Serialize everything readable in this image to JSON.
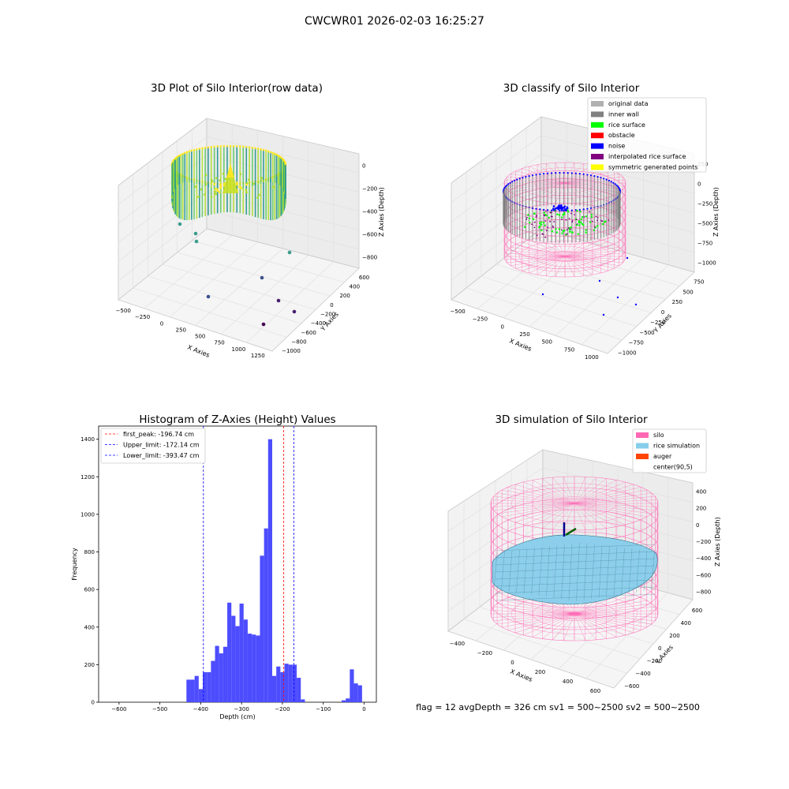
{
  "suptitle": "CWCWR01 2026-02-03 16:25:27",
  "status_line": "flag = 12   avgDepth = 326 cm   sv1 = 500~2500   sv2 = 500~2500",
  "colors": {
    "hist_bar": "#4d4dff",
    "first_peak": "#ff0000",
    "limit": "#0000ff",
    "silo": "#ff69b4",
    "rice_simulation": "#87ceeb",
    "auger": "#ff4500",
    "inner_wall": "#808080",
    "rice_surface": "#00ff00",
    "noise": "#0000ff",
    "original_data": "#b0b0b0",
    "obstacle": "#ff0000",
    "interpolated_rice_surface": "#800080",
    "symmetric_generated_points": "#ffff00"
  },
  "chart_data": [
    {
      "type": "scatter",
      "title": "3D Plot of Silo Interior(row data)",
      "projection": "3d",
      "xlabel": "X Axies",
      "ylabel": "Y Axies",
      "zlabel": "Z Axies (Depth)",
      "x_ticks": [
        "−500",
        "−250",
        "0",
        "250",
        "500",
        "750",
        "1000",
        "1250"
      ],
      "y_ticks": [
        "600",
        "400",
        "200",
        "0",
        "−200",
        "−400",
        "−600",
        "−800",
        "−1000"
      ],
      "z_ticks": [
        "0",
        "−200",
        "−400",
        "−600",
        "−800"
      ],
      "colormap": "viridis"
    },
    {
      "type": "scatter",
      "title": "3D classify of Silo Interior",
      "projection": "3d",
      "xlabel": "X Axies",
      "ylabel": "Y Axies",
      "zlabel": "Z Axies (Depth)",
      "x_ticks": [
        "−500",
        "−250",
        "0",
        "250",
        "500",
        "750",
        "1000"
      ],
      "y_ticks": [
        "750",
        "500",
        "250",
        "0",
        "−250",
        "−500",
        "−750",
        "−1000"
      ],
      "z_ticks": [
        "250",
        "0",
        "−250",
        "−500",
        "−750",
        "−1000"
      ],
      "legend": [
        {
          "label": "original data",
          "color": "#b0b0b0"
        },
        {
          "label": "inner wall",
          "color": "#808080"
        },
        {
          "label": "rice surface",
          "color": "#00ff00"
        },
        {
          "label": "obstacle",
          "color": "#ff0000"
        },
        {
          "label": "noise",
          "color": "#0000ff"
        },
        {
          "label": "interpolated rice surface",
          "color": "#800080"
        },
        {
          "label": "symmetric generated points",
          "color": "#ffff00"
        }
      ],
      "legend_loc": "upper right"
    },
    {
      "type": "bar",
      "title": "Histogram of Z-Axies (Height) Values",
      "xlabel": "Depth (cm)",
      "ylabel": "Frequency",
      "xlim": [
        -650,
        30
      ],
      "ylim": [
        0,
        1470
      ],
      "x_ticks": [
        "−600",
        "−500",
        "−400",
        "−300",
        "−200",
        "−100",
        "0"
      ],
      "y_ticks": [
        "0",
        "200",
        "400",
        "600",
        "800",
        "1000",
        "1200",
        "1400"
      ],
      "bin_width": 10,
      "bins_left": [
        -435,
        -425,
        -415,
        -405,
        -395,
        -385,
        -375,
        -365,
        -355,
        -345,
        -335,
        -325,
        -315,
        -305,
        -295,
        -285,
        -275,
        -265,
        -255,
        -245,
        -235,
        -225,
        -215,
        -205,
        -195,
        -185,
        -175,
        -165,
        -155,
        -145,
        -135,
        -125,
        -115,
        -105,
        -95,
        -85,
        -75,
        -65,
        -55,
        -45,
        -35,
        -25,
        -15,
        -5
      ],
      "values": [
        120,
        120,
        140,
        70,
        160,
        160,
        220,
        300,
        260,
        295,
        530,
        460,
        405,
        525,
        440,
        365,
        360,
        355,
        780,
        925,
        1400,
        140,
        190,
        160,
        205,
        200,
        200,
        130,
        15,
        0,
        0,
        0,
        0,
        0,
        0,
        0,
        0,
        0,
        10,
        20,
        175,
        100,
        90,
        0
      ],
      "lines": [
        {
          "label": "first_peak: -196.74 cm",
          "x": -196.74,
          "color": "#ff0000"
        },
        {
          "label": "Upper_limit: -172.14 cm",
          "x": -172.14,
          "color": "#0000ff"
        },
        {
          "label": "Lower_limit: -393.47 cm",
          "x": -393.47,
          "color": "#0000ff"
        }
      ],
      "legend_loc": "upper left"
    },
    {
      "type": "surface",
      "title": "3D simulation of Silo Interior",
      "projection": "3d",
      "xlabel": "X Axies",
      "ylabel": "Y Axies",
      "zlabel": "Z Axies (Depth)",
      "x_ticks": [
        "−400",
        "−200",
        "0",
        "200",
        "400",
        "600"
      ],
      "y_ticks": [
        "600",
        "400",
        "200",
        "0",
        "−200",
        "−400",
        "−600"
      ],
      "z_ticks": [
        "400",
        "200",
        "0",
        "−200",
        "−400",
        "−600",
        "−800"
      ],
      "legend": [
        {
          "label": "silo",
          "color": "#ff69b4"
        },
        {
          "label": "rice simulation",
          "color": "#87ceeb"
        },
        {
          "label": "auger",
          "color": "#ff4500"
        },
        {
          "label": "center(90,5)",
          "color": ""
        }
      ],
      "legend_loc": "upper right"
    }
  ]
}
